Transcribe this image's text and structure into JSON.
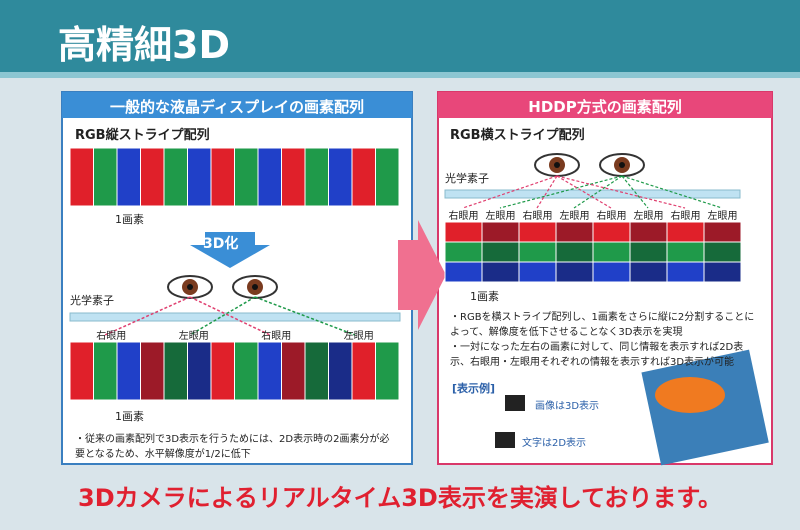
{
  "title": "高精細3D",
  "left_panel": {
    "header": "一般的な液晶ディスプレイの画素配列",
    "subtitle": "RGB縦ストライプ配列",
    "pixel_label_top": "1画素",
    "convert_label": "3D化",
    "optical_element": "光学素子",
    "eye_labels": [
      "右眼用",
      "左眼用",
      "右眼用",
      "左眼用"
    ],
    "pixel_label_bottom": "1画素",
    "note": "・従来の画素配列で3D表示を行うためには、2D表示時の2画素分が必要となるため、水平解像度が1/2に低下"
  },
  "right_panel": {
    "header": "HDDP方式の画素配列",
    "subtitle": "RGB横ストライプ配列",
    "optical_element": "光学素子",
    "eye_labels": [
      "右眼用",
      "左眼用",
      "右眼用",
      "左眼用",
      "右眼用",
      "左眼用",
      "右眼用",
      "左眼用"
    ],
    "pixel_label": "1画素",
    "bullets": [
      "・RGBを横ストライプ配列し、1画素をさらに縦に2分割することによって、解像度を低下させることなく3D表示を実現",
      "・一対になった左右の画素に対して、同じ情報を表示すれば2D表示、右眼用・左眼用それぞれの情報を表示すれば3D表示が可能"
    ],
    "example_title": "[表示例]",
    "example_image": "画像は3D表示",
    "example_text": "文字は2D表示"
  },
  "footer": "3Dカメラによるリアルタイム3D表示を実演しております。"
}
